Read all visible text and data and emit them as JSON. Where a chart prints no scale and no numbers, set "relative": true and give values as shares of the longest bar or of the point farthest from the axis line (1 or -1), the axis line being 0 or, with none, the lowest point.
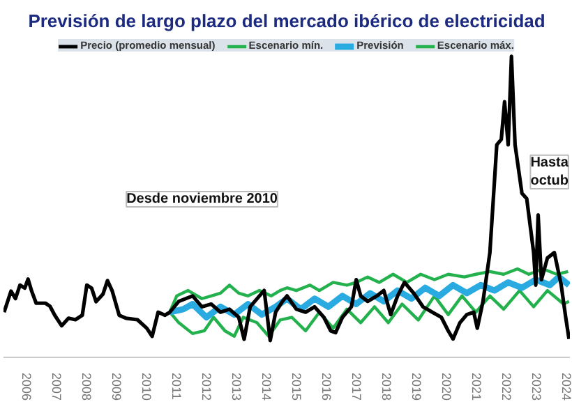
{
  "chart_data": {
    "type": "line",
    "title": "Previsión de largo plazo del mercado ibérico de electricidad",
    "relative": true,
    "xlim": [
      2005.2,
      2024.1
    ],
    "xticks": [
      2006,
      2007,
      2008,
      2009,
      2010,
      2011,
      2012,
      2013,
      2014,
      2015,
      2016,
      2017,
      2018,
      2019,
      2020,
      2021,
      2022,
      2023,
      2024
    ],
    "legend": "top",
    "grid": false,
    "annotations": [
      "Desde noviembre 2010",
      "Hasta octub"
    ],
    "series": [
      {
        "name": "Precio (promedio mensual)",
        "color": "#000000",
        "x": [
          2005.22,
          2005.45,
          2005.6,
          2005.75,
          2005.91,
          2006.02,
          2006.14,
          2006.29,
          2006.6,
          2006.75,
          2006.91,
          2007.14,
          2007.37,
          2007.6,
          2007.83,
          2007.98,
          2008.14,
          2008.29,
          2008.52,
          2008.67,
          2008.83,
          2009.06,
          2009.29,
          2009.67,
          2009.98,
          2010.16,
          2010.36,
          2010.59,
          2010.75,
          2011.05,
          2011.51,
          2011.82,
          2012.13,
          2012.44,
          2012.74,
          2013.05,
          2013.23,
          2013.43,
          2013.74,
          2013.9,
          2014.1,
          2014.28,
          2014.51,
          2014.66,
          2014.97,
          2015.28,
          2015.58,
          2015.89,
          2016.12,
          2016.28,
          2016.51,
          2016.81,
          2016.97,
          2017.12,
          2017.35,
          2017.66,
          2017.89,
          2018.12,
          2018.35,
          2018.58,
          2018.89,
          2019.2,
          2019.51,
          2019.81,
          2020.04,
          2020.2,
          2020.43,
          2020.66,
          2020.89,
          2021.01,
          2021.2,
          2021.43,
          2021.66,
          2021.81,
          2021.92,
          2022.04,
          2022.15,
          2022.27,
          2022.5,
          2022.66,
          2022.89,
          2022.96,
          2023.04,
          2023.15,
          2023.35,
          2023.58,
          2023.81,
          2023.96,
          2024.07
        ],
        "values": [
          0.15,
          0.22,
          0.195,
          0.24,
          0.23,
          0.26,
          0.22,
          0.18,
          0.18,
          0.17,
          0.14,
          0.105,
          0.13,
          0.125,
          0.14,
          0.24,
          0.23,
          0.185,
          0.21,
          0.255,
          0.22,
          0.14,
          0.13,
          0.125,
          0.097,
          0.07,
          0.15,
          0.14,
          0.15,
          0.186,
          0.204,
          0.168,
          0.177,
          0.15,
          0.16,
          0.133,
          0.06,
          0.168,
          0.204,
          0.222,
          0.056,
          0.15,
          0.186,
          0.204,
          0.16,
          0.15,
          0.168,
          0.133,
          0.088,
          0.082,
          0.133,
          0.168,
          0.258,
          0.204,
          0.186,
          0.204,
          0.222,
          0.142,
          0.204,
          0.249,
          0.213,
          0.168,
          0.15,
          0.133,
          0.088,
          0.061,
          0.115,
          0.142,
          0.15,
          0.097,
          0.186,
          0.348,
          0.706,
          0.724,
          0.849,
          0.706,
          1.0,
          0.706,
          0.545,
          0.527,
          0.348,
          0.24,
          0.473,
          0.258,
          0.33,
          0.348,
          0.24,
          0.133,
          0.061
        ]
      },
      {
        "name": "Escenario mín.",
        "color": "#22b14c",
        "x": [
          2010.75,
          2011.05,
          2011.51,
          2011.9,
          2012.21,
          2012.59,
          2012.9,
          2013.2,
          2013.66,
          2014.05,
          2014.43,
          2014.82,
          2015.28,
          2015.74,
          2016.2,
          2016.66,
          2017.12,
          2017.58,
          2018.04,
          2018.5,
          2019.04,
          2019.58,
          2020.04,
          2020.5,
          2020.96,
          2021.43,
          2021.89,
          2022.42,
          2022.89,
          2023.35,
          2023.89,
          2024.07
        ],
        "values": [
          0.15,
          0.115,
          0.079,
          0.088,
          0.133,
          0.088,
          0.07,
          0.133,
          0.115,
          0.07,
          0.124,
          0.133,
          0.088,
          0.15,
          0.097,
          0.16,
          0.115,
          0.168,
          0.115,
          0.177,
          0.124,
          0.204,
          0.142,
          0.204,
          0.15,
          0.204,
          0.16,
          0.222,
          0.168,
          0.222,
          0.177,
          0.186
        ]
      },
      {
        "name": "Previsión",
        "color": "#29abe2",
        "x": [
          2010.75,
          2011.2,
          2011.51,
          2011.97,
          2012.44,
          2012.9,
          2013.36,
          2013.82,
          2014.28,
          2014.66,
          2015.12,
          2015.58,
          2016.04,
          2016.51,
          2016.97,
          2017.43,
          2017.89,
          2018.35,
          2018.81,
          2019.27,
          2019.74,
          2020.2,
          2020.66,
          2021.12,
          2021.58,
          2022.04,
          2022.5,
          2022.96,
          2023.43,
          2023.73,
          2024.07
        ],
        "values": [
          0.15,
          0.16,
          0.177,
          0.133,
          0.168,
          0.142,
          0.177,
          0.142,
          0.168,
          0.195,
          0.16,
          0.195,
          0.168,
          0.204,
          0.177,
          0.213,
          0.186,
          0.222,
          0.195,
          0.231,
          0.204,
          0.24,
          0.213,
          0.24,
          0.222,
          0.249,
          0.231,
          0.258,
          0.24,
          0.267,
          0.24
        ]
      },
      {
        "name": "Escenario máx.",
        "color": "#22b14c",
        "x": [
          2010.75,
          2010.98,
          2011.36,
          2011.82,
          2012.13,
          2012.44,
          2012.74,
          2013.05,
          2013.36,
          2013.74,
          2014.13,
          2014.43,
          2014.66,
          2014.97,
          2015.43,
          2015.74,
          2016.2,
          2016.66,
          2016.97,
          2017.35,
          2017.74,
          2018.2,
          2018.66,
          2019.12,
          2019.58,
          2020.04,
          2020.58,
          2020.96,
          2021.43,
          2021.89,
          2022.35,
          2022.73,
          2023.2,
          2023.66,
          2024.04
        ],
        "values": [
          0.15,
          0.204,
          0.222,
          0.195,
          0.204,
          0.213,
          0.24,
          0.213,
          0.204,
          0.222,
          0.204,
          0.222,
          0.231,
          0.222,
          0.24,
          0.222,
          0.249,
          0.24,
          0.249,
          0.267,
          0.249,
          0.276,
          0.249,
          0.276,
          0.258,
          0.276,
          0.267,
          0.276,
          0.285,
          0.276,
          0.294,
          0.276,
          0.294,
          0.276,
          0.285
        ]
      }
    ]
  }
}
